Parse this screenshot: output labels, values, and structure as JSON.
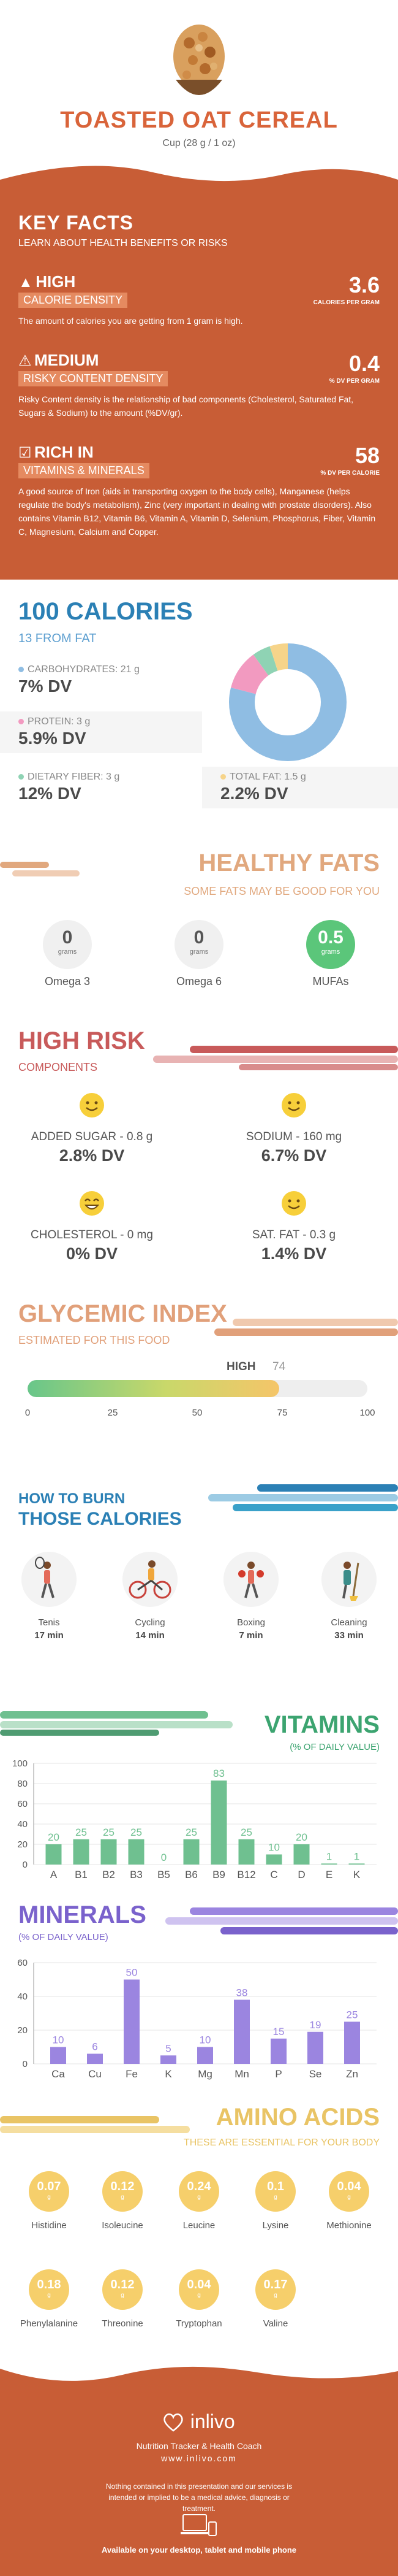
{
  "header": {
    "title": "TOASTED OAT CEREAL",
    "serving": "Cup (28 g / 1 oz)"
  },
  "key_facts": {
    "title": "KEY FACTS",
    "subtitle": "LEARN ABOUT HEALTH BENEFITS OR RISKS",
    "items": [
      {
        "level": "HIGH",
        "name": "CALORIE DENSITY",
        "value": "3.6",
        "unit": "CALORIES PER GRAM",
        "desc": "The amount of calories you are getting from 1 gram is high."
      },
      {
        "level": "MEDIUM",
        "name": "RISKY CONTENT DENSITY",
        "value": "0.4",
        "unit": "% DV PER GRAM",
        "desc": "Risky Content density is the relationship of bad components (Cholesterol, Saturated Fat, Sugars & Sodium) to the amount (%DV/gr)."
      },
      {
        "level": "RICH IN",
        "name": "VITAMINS & MINERALS",
        "value": "58",
        "unit": "% DV PER CALORIE",
        "desc": "A good source of Iron (aids in transporting oxygen to the body cells), Manganese (helps regulate the body's metabolism), Zinc (very important in dealing with prostate disorders). Also contains Vitamin B12, Vitamin B6, Vitamin A, Vitamin D, Selenium, Phosphorus, Fiber, Vitamin C, Magnesium, Calcium and Copper."
      }
    ]
  },
  "calories": {
    "title": "100 CALORIES",
    "from_fat": "13 FROM FAT",
    "macros": [
      {
        "label": "CARBOHYDRATES: 21 g",
        "dv": "7% DV",
        "color": "#8fbde3",
        "share": 79
      },
      {
        "label": "PROTEIN: 3 g",
        "dv": "5.9% DV",
        "color": "#f29ac0",
        "share": 11
      },
      {
        "label": "DIETARY FIBER: 3 g",
        "dv": "12% DV",
        "color": "#8fd3b4",
        "share": 5
      },
      {
        "label": "TOTAL FAT: 1.5 g",
        "dv": "2.2% DV",
        "color": "#f6d48a",
        "share": 5
      }
    ]
  },
  "healthy_fats": {
    "title": "HEALTHY FATS",
    "subtitle": "SOME FATS MAY BE GOOD FOR YOU",
    "items": [
      {
        "value": "0",
        "unit": "grams",
        "name": "Omega 3"
      },
      {
        "value": "0",
        "unit": "grams",
        "name": "Omega 6"
      },
      {
        "value": "0.5",
        "unit": "grams",
        "name": "MUFAs"
      }
    ]
  },
  "high_risk": {
    "title": "HIGH RISK",
    "subtitle": "COMPONENTS",
    "items": [
      {
        "label": "ADDED SUGAR - 0.8 g",
        "dv": "2.8% DV",
        "face": "smile-face-icon"
      },
      {
        "label": "SODIUM - 160 mg",
        "dv": "6.7% DV",
        "face": "smile-face-icon"
      },
      {
        "label": "CHOLESTEROL - 0 mg",
        "dv": "0% DV",
        "face": "happy-face-icon"
      },
      {
        "label": "SAT. FAT - 0.3 g",
        "dv": "1.4% DV",
        "face": "smile-face-icon"
      }
    ]
  },
  "glycemic": {
    "title": "GLYCEMIC INDEX",
    "subtitle": "ESTIMATED FOR THIS FOOD",
    "level": "HIGH",
    "value": "74",
    "fraction": 0.74,
    "ticks": [
      "0",
      "25",
      "50",
      "75",
      "100"
    ]
  },
  "burn": {
    "title_small": "HOW TO BURN",
    "title": "THOSE CALORIES",
    "activities": [
      {
        "name": "Tenis",
        "minutes": "17 min",
        "icon": "tennis-player-icon"
      },
      {
        "name": "Cycling",
        "minutes": "14 min",
        "icon": "cyclist-icon"
      },
      {
        "name": "Boxing",
        "minutes": "7 min",
        "icon": "boxer-icon"
      },
      {
        "name": "Cleaning",
        "minutes": "33 min",
        "icon": "cleaner-icon"
      }
    ]
  },
  "vitamins": {
    "title": "VITAMINS",
    "subtitle": "(% OF DAILY VALUE)",
    "chart_data": {
      "type": "bar",
      "categories": [
        "A",
        "B1",
        "B2",
        "B3",
        "B5",
        "B6",
        "B9",
        "B12",
        "C",
        "D",
        "E",
        "K"
      ],
      "values": [
        20,
        25,
        25,
        25,
        0,
        25,
        83,
        25,
        10,
        20,
        1,
        1
      ],
      "ylim": [
        0,
        100
      ],
      "yticks": [
        "0",
        "20",
        "40",
        "60",
        "80",
        "100"
      ],
      "color": "#6fc090"
    }
  },
  "minerals": {
    "title": "MINERALS",
    "subtitle": "(% OF DAILY VALUE)",
    "chart_data": {
      "type": "bar",
      "categories": [
        "Ca",
        "Cu",
        "Fe",
        "K",
        "Mg",
        "Mn",
        "P",
        "Se",
        "Zn"
      ],
      "values": [
        10,
        6,
        50,
        5,
        10,
        38,
        15,
        19,
        25
      ],
      "ylim": [
        0,
        60
      ],
      "yticks": [
        "0",
        "20",
        "40",
        "60"
      ],
      "color": "#9b85e0"
    }
  },
  "amino": {
    "title": "AMINO ACIDS",
    "subtitle": "THESE ARE ESSENTIAL FOR YOUR BODY",
    "unit": "g",
    "items": [
      {
        "name": "Histidine",
        "value": "0.07"
      },
      {
        "name": "Isoleucine",
        "value": "0.12"
      },
      {
        "name": "Leucine",
        "value": "0.24"
      },
      {
        "name": "Lysine",
        "value": "0.1"
      },
      {
        "name": "Methionine",
        "value": "0.04"
      },
      {
        "name": "Phenylalanine",
        "value": "0.18"
      },
      {
        "name": "Threonine",
        "value": "0.12"
      },
      {
        "name": "Tryptophan",
        "value": "0.04"
      },
      {
        "name": "Valine",
        "value": "0.17"
      }
    ]
  },
  "footer": {
    "brand": "inlivo",
    "tagline": "Nutrition Tracker & Health Coach",
    "url": "www.inlivo.com",
    "disclaimer": "Nothing contained in this presentation and our services is intended or implied to be a medical advice, diagnosis or treatment.",
    "available": "Available on your desktop, tablet and mobile phone"
  },
  "colors": {
    "orange": "#c85d36",
    "blue": "#2b80b5",
    "green": "#6fc090",
    "purple": "#9b85e0",
    "yellow": "#f6cf6b"
  }
}
